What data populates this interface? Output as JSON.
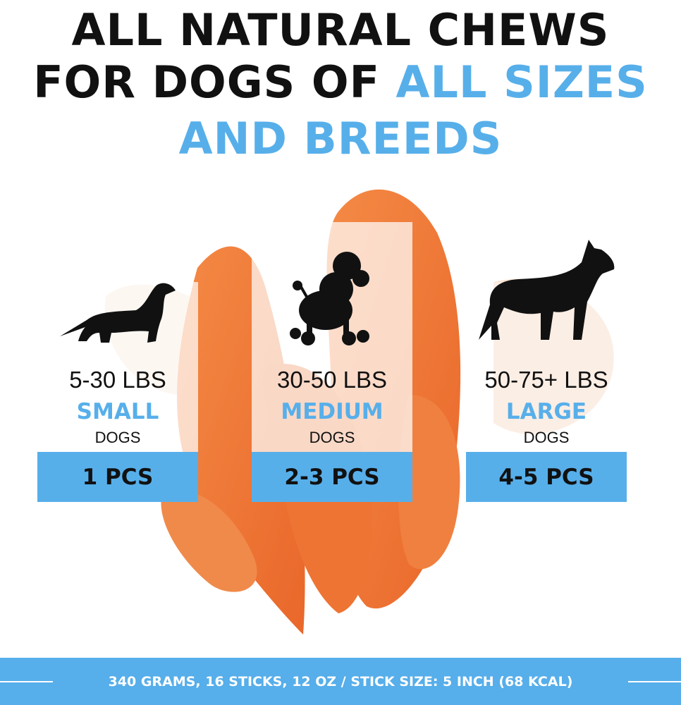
{
  "headline": {
    "line1": "ALL NATURAL CHEWS",
    "line2_black": "FOR DOGS OF ",
    "line2_blue": "ALL SIZES",
    "line3": "AND BREEDS"
  },
  "colors": {
    "accent": "#57afea",
    "text": "#111111",
    "chew": "#f07a3a"
  },
  "cards": [
    {
      "weight": "5-30 LBS",
      "size": "SMALL",
      "suffix": "DOGS",
      "pieces": "1 PCS",
      "icon": "dachshund-icon"
    },
    {
      "weight": "30-50 LBS",
      "size": "MEDIUM",
      "suffix": "DOGS",
      "pieces": "2-3 PCS",
      "icon": "poodle-icon"
    },
    {
      "weight": "50-75+ LBS",
      "size": "LARGE",
      "suffix": "DOGS",
      "pieces": "4-5 PCS",
      "icon": "boxer-icon"
    }
  ],
  "footer": {
    "text": "340 GRAMS, 16 STICKS, 12 OZ / STICK SIZE: 5 INCH (68 KCAL)"
  }
}
